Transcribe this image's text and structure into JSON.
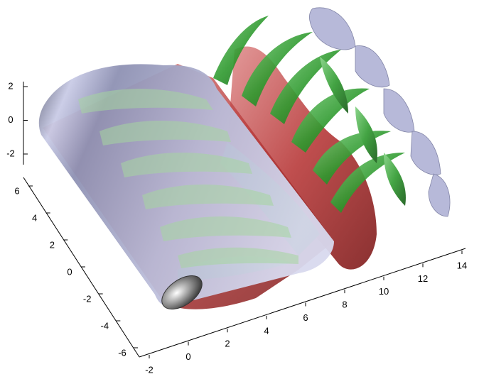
{
  "chart_data": {
    "type": "isosurface3d",
    "xlim": [
      -2,
      14
    ],
    "xticks": [
      -2,
      0,
      2,
      4,
      6,
      8,
      10,
      12,
      14
    ],
    "ylim": [
      -6,
      6
    ],
    "yticks": [
      -6,
      -4,
      -2,
      0,
      2,
      4,
      6
    ],
    "zlim": [
      -2,
      2
    ],
    "zticks": [
      -2,
      0,
      2
    ]
  }
}
